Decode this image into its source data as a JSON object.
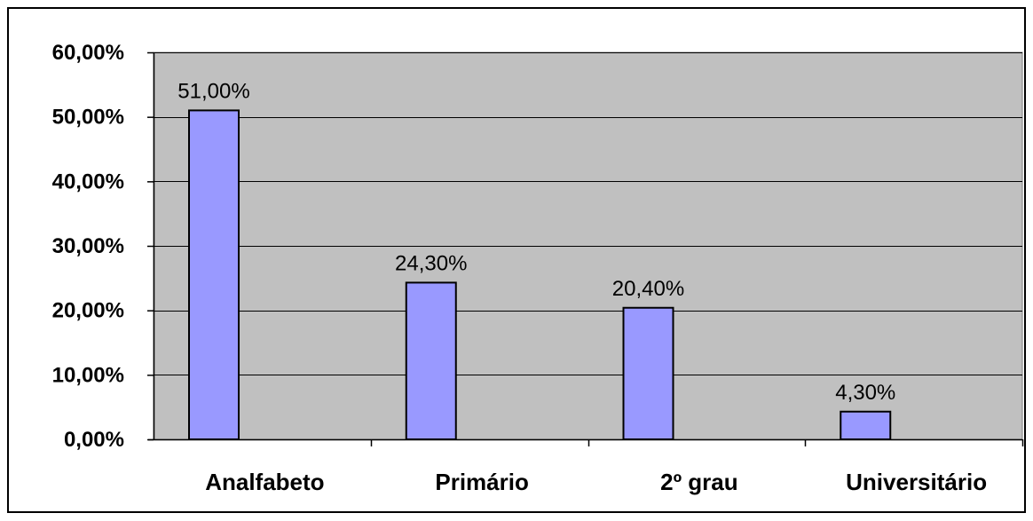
{
  "chart_data": {
    "type": "bar",
    "categories": [
      "Analfabeto",
      "Primário",
      "2º grau",
      "Universitário"
    ],
    "values": [
      51.0,
      24.3,
      20.4,
      4.3
    ],
    "value_labels": [
      "51,00%",
      "24,30%",
      "20,40%",
      "4,30%"
    ],
    "y_ticks": [
      0,
      10,
      20,
      30,
      40,
      50,
      60
    ],
    "y_tick_labels": [
      "0,00%",
      "10,00%",
      "20,00%",
      "30,00%",
      "40,00%",
      "50,00%",
      "60,00%"
    ],
    "ylim": [
      0,
      60
    ],
    "grid": true,
    "legend": "none",
    "title": "",
    "xlabel": "",
    "ylabel": "",
    "colors": {
      "plot_background": "#c0c0c0",
      "bar_fill": "#9999ff",
      "bar_stroke": "#000000",
      "gridline": "#000000"
    }
  }
}
